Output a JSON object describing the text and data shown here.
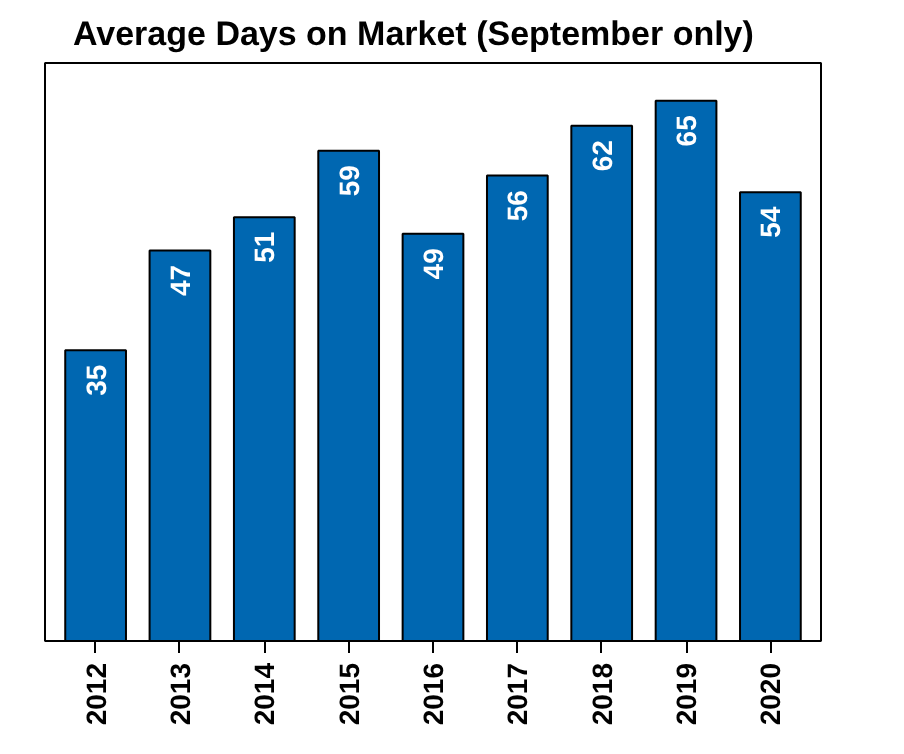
{
  "chart_data": {
    "type": "bar",
    "title": "Average Days on Market (September only)",
    "categories": [
      "2012",
      "2013",
      "2014",
      "2015",
      "2016",
      "2017",
      "2018",
      "2019",
      "2020"
    ],
    "values": [
      35,
      47,
      51,
      59,
      49,
      56,
      62,
      65,
      54
    ],
    "color": "#0067b1",
    "data_labels": true
  }
}
